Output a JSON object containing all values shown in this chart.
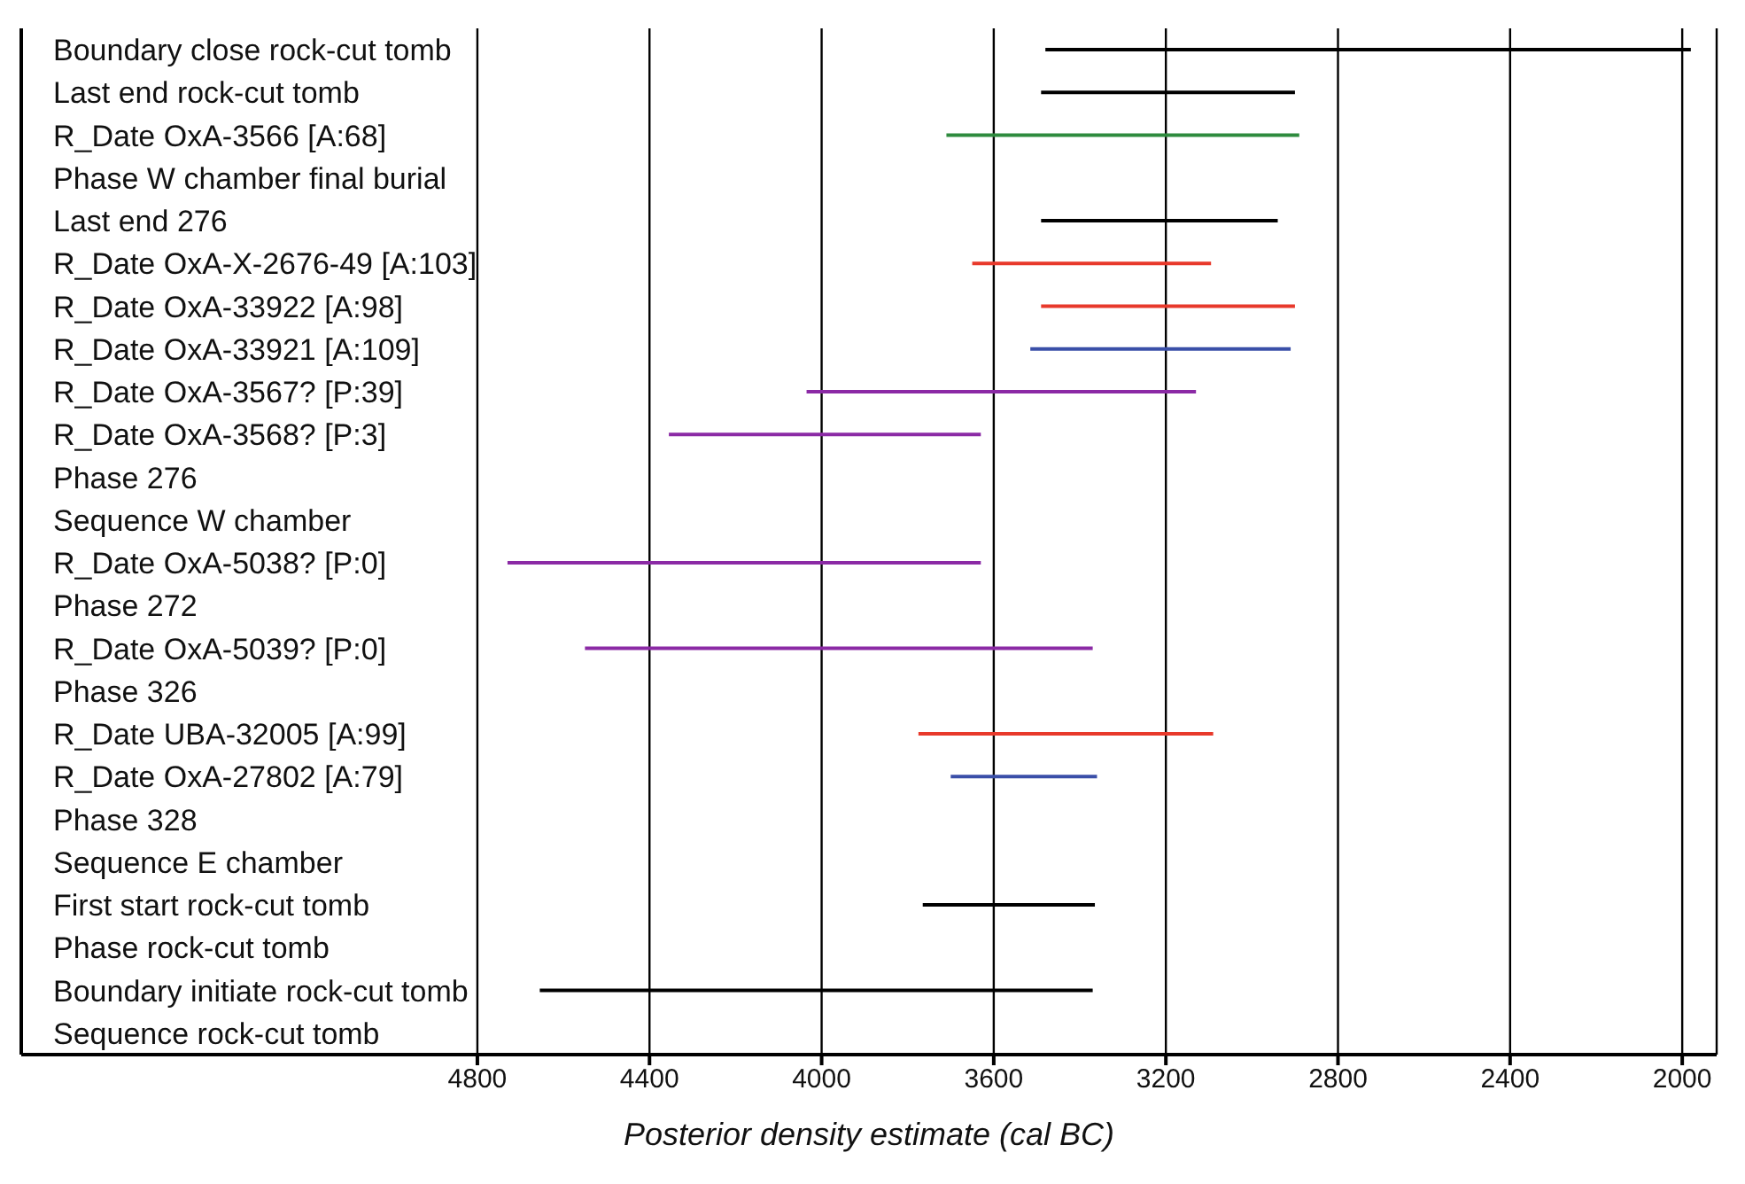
{
  "chart_data": {
    "type": "bar",
    "orientation": "horizontal",
    "categories": [
      "Boundary close rock-cut tomb",
      "Last end rock-cut tomb",
      "R_Date OxA-3566 [A:68]",
      "Phase W chamber final burial",
      "Last end 276",
      "R_Date OxA-X-2676-49 [A:103]",
      "R_Date OxA-33922 [A:98]",
      "R_Date OxA-33921 [A:109]",
      "R_Date OxA-3567? [P:39]",
      "R_Date OxA-3568? [P:3]",
      "Phase 276",
      "Sequence W chamber",
      "R_Date OxA-5038? [P:0]",
      "Phase 272",
      "R_Date OxA-5039? [P:0]",
      "Phase 326",
      "R_Date UBA-32005 [A:99]",
      "R_Date OxA-27802 [A:79]",
      "Phase 328",
      "Sequence E chamber",
      "First start rock-cut tomb",
      "Phase rock-cut tomb",
      "Boundary initiate rock-cut tomb",
      "Sequence rock-cut tomb"
    ],
    "base": [
      3480,
      3490,
      3710,
      null,
      3490,
      3650,
      3490,
      3515,
      4035,
      4355,
      null,
      null,
      4730,
      null,
      4550,
      null,
      3775,
      3700,
      null,
      null,
      3765,
      null,
      4655,
      null
    ],
    "values": [
      -1500,
      -590,
      -820,
      null,
      -550,
      -555,
      -590,
      -605,
      -905,
      -725,
      null,
      null,
      -1100,
      null,
      -1180,
      null,
      -685,
      -340,
      null,
      null,
      -400,
      null,
      -1285,
      null
    ],
    "colors": [
      "#000000",
      "#000000",
      "#2e8b3e",
      "#000000",
      "#000000",
      "#e8392b",
      "#e8392b",
      "#3a4fa8",
      "#8b2aa5",
      "#8b2aa5",
      "#000000",
      "#000000",
      "#8b2aa5",
      "#000000",
      "#8b2aa5",
      "#000000",
      "#e8392b",
      "#3a4fa8",
      "#000000",
      "#000000",
      "#000000",
      "#000000",
      "#000000",
      "#000000"
    ],
    "xlabel": "Posterior density estimate (cal BC)",
    "xlim": [
      5860,
      1920
    ],
    "xticks": [
      4800,
      4400,
      4000,
      3600,
      3200,
      2800,
      2400,
      2000
    ],
    "grid": "x"
  }
}
